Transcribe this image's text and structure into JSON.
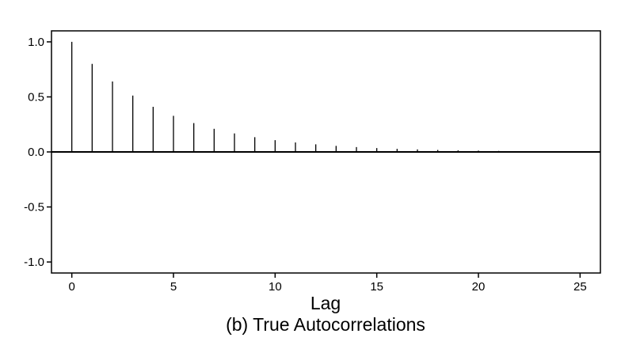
{
  "chart_data": {
    "type": "bar",
    "subtype": "stem",
    "title": "(b) True Autocorrelations",
    "xlabel": "Lag",
    "ylabel": "",
    "xlim": [
      -1,
      26
    ],
    "ylim": [
      -1.1,
      1.1
    ],
    "xticks": [
      0,
      5,
      10,
      15,
      20,
      25
    ],
    "yticks": [
      1.0,
      0.5,
      0.0,
      -0.5,
      -1.0
    ],
    "ytick_labels": [
      "1.0",
      "0.5",
      "0.0",
      "-0.5",
      "-1.0"
    ],
    "grid": false,
    "x": [
      0,
      1,
      2,
      3,
      4,
      5,
      6,
      7,
      8,
      9,
      10,
      11,
      12,
      13,
      14,
      15,
      16,
      17,
      18,
      19,
      20,
      21,
      22,
      23,
      24,
      25
    ],
    "values": [
      1.0,
      0.8,
      0.64,
      0.512,
      0.41,
      0.328,
      0.262,
      0.21,
      0.168,
      0.134,
      0.107,
      0.086,
      0.069,
      0.055,
      0.044,
      0.035,
      0.028,
      0.023,
      0.018,
      0.014,
      0.012,
      0.009,
      0.007,
      0.006,
      0.005,
      0.004
    ],
    "colors": {
      "line": "#000000",
      "background": "#ffffff"
    }
  }
}
